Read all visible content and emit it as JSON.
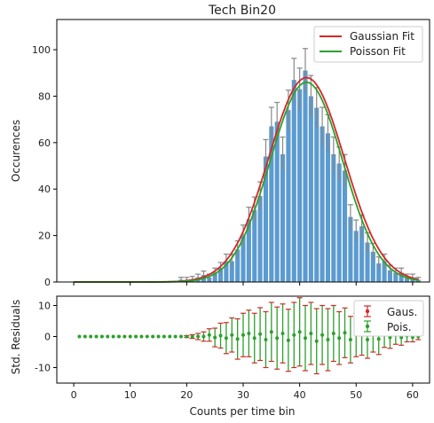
{
  "chart_data": {
    "type": "bar",
    "title": "Tech Bin20",
    "xlabel": "Counts per time bin",
    "ylabel": "Occurences",
    "resid_ylabel": "Std. Residuals",
    "xlim": [
      -3,
      63
    ],
    "ylim": [
      0,
      113
    ],
    "resid_ylim": [
      -15,
      13
    ],
    "xticks": [
      0,
      10,
      20,
      30,
      40,
      50,
      60
    ],
    "yticks": [
      0,
      20,
      40,
      60,
      80,
      100
    ],
    "resid_yticks": [
      -10,
      0,
      10
    ],
    "grid": false,
    "colors": {
      "bar": "#5b9bd0",
      "errorbar": "#888888",
      "gaussian": "#d62728",
      "poisson": "#2ca02c",
      "resid_cap": "#d62728",
      "resid_line": "#2ca02c",
      "resid_marker": "#2ca02c"
    },
    "histogram": {
      "bins": [
        19,
        20,
        21,
        22,
        23,
        24,
        25,
        26,
        27,
        28,
        29,
        30,
        31,
        32,
        33,
        34,
        35,
        36,
        37,
        38,
        39,
        40,
        41,
        42,
        43,
        44,
        45,
        46,
        47,
        48,
        49,
        50,
        51,
        52,
        53,
        54,
        55,
        56,
        57,
        58,
        59,
        60,
        61
      ],
      "counts": [
        1,
        1,
        1,
        2,
        3,
        2,
        4,
        6,
        9,
        9,
        14,
        20,
        27,
        31,
        37,
        54,
        67,
        69,
        55,
        74,
        87,
        83,
        91,
        80,
        75,
        67,
        64,
        55,
        51,
        48,
        28,
        22,
        24,
        17,
        13,
        8,
        9,
        5,
        4,
        4,
        2,
        2,
        1
      ],
      "errors": [
        1,
        1,
        1.4,
        1.4,
        1.7,
        1.4,
        2,
        2.4,
        3,
        3,
        3.7,
        4.5,
        5.2,
        5.6,
        6.1,
        7.3,
        8.2,
        8.3,
        7.4,
        8.6,
        9.3,
        9.1,
        9.5,
        8.9,
        8.7,
        8.2,
        8,
        7.4,
        7.1,
        6.9,
        5.3,
        4.7,
        4.9,
        4.1,
        3.6,
        2.8,
        3,
        2.2,
        2,
        2,
        1.4,
        1.4,
        1
      ]
    },
    "series": [
      {
        "name": "Gaussian Fit",
        "mean": 41.2,
        "sigma": 6.7,
        "peak": 88
      },
      {
        "name": "Poisson Fit",
        "mean": 41.2,
        "sigma": 6.42,
        "peak": 86
      }
    ],
    "residuals": {
      "legend": [
        "Gaus.",
        "Pois."
      ],
      "x": [
        1,
        2,
        3,
        4,
        5,
        6,
        7,
        8,
        9,
        10,
        11,
        12,
        13,
        14,
        15,
        16,
        17,
        18,
        19,
        20,
        21,
        22,
        23,
        24,
        25,
        26,
        27,
        28,
        29,
        30,
        31,
        32,
        33,
        34,
        35,
        36,
        37,
        38,
        39,
        40,
        41,
        42,
        43,
        44,
        45,
        46,
        47,
        48,
        49,
        50,
        51,
        52,
        53,
        54,
        55,
        56,
        57,
        58,
        59,
        60,
        61
      ],
      "values": [
        0,
        0,
        0,
        0,
        0,
        0,
        0,
        0,
        0,
        0,
        0,
        0,
        0,
        0,
        0,
        0,
        0,
        0,
        0,
        0,
        0,
        0,
        0,
        0.5,
        -0.3,
        0.3,
        -0.5,
        0.5,
        -0.8,
        0.5,
        1,
        -0.5,
        0.8,
        -1,
        1.5,
        -0.5,
        1,
        -1.2,
        0.5,
        1.5,
        -0.5,
        1,
        -1.5,
        0.5,
        -1,
        1,
        -0.5,
        1.2,
        -1,
        0.5,
        1,
        -1,
        0.5,
        -0.8,
        0.5,
        -0.3,
        0.5,
        -0.3,
        0.3,
        -0.2,
        0
      ],
      "errors": [
        0,
        0,
        0,
        0,
        0,
        0,
        0,
        0,
        0,
        0,
        0,
        0,
        0,
        0,
        0,
        0,
        0,
        0,
        0,
        0.3,
        0.6,
        1,
        1.5,
        2,
        3,
        4,
        5,
        5.5,
        6.5,
        7,
        7.5,
        8,
        8.5,
        9,
        9.5,
        10,
        9.5,
        10,
        10.5,
        11,
        10.5,
        10,
        10.5,
        9.5,
        10,
        9,
        8.5,
        8,
        7.5,
        7,
        7,
        6,
        5.5,
        5,
        4,
        3.5,
        3,
        2.5,
        2,
        1.5,
        1
      ]
    }
  }
}
